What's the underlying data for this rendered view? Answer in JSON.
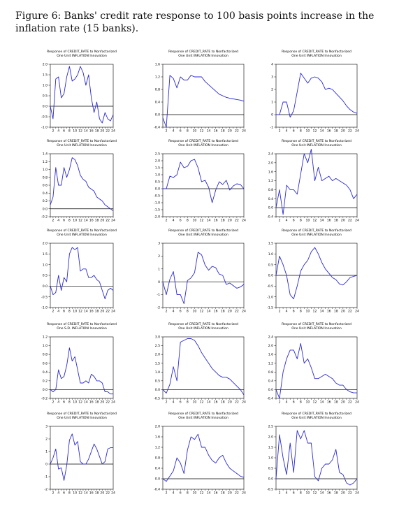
{
  "caption": "Figure 6: Banks' credit rate response to 100 basis points increase in the inflation rate (15 banks).",
  "colors": {
    "line": "#2a2ad0",
    "axis": "#000000",
    "zero_line": "#000000"
  },
  "chart_data": [
    {
      "type": "line",
      "title": "Response of CREDIT_RATE to Nonfactorized\nOne Unit INFLATION Innovation",
      "x": [
        1,
        2,
        3,
        4,
        5,
        6,
        7,
        8,
        9,
        10,
        11,
        12,
        13,
        14,
        15,
        16,
        17,
        18,
        19,
        20,
        21,
        22,
        23,
        24
      ],
      "y": [
        0.0,
        -0.6,
        1.3,
        1.4,
        0.4,
        0.6,
        1.4,
        1.9,
        1.2,
        1.3,
        1.5,
        1.9,
        1.6,
        1.0,
        1.5,
        0.4,
        -0.3,
        0.2,
        -0.6,
        -0.8,
        -0.3,
        -0.6,
        -0.7,
        -0.4
      ],
      "ylim": [
        -1.0,
        2.0
      ],
      "yticks": [
        "-1.0",
        "-0.5",
        "0.0",
        "0.5",
        "1.0",
        "1.5",
        "2.0"
      ],
      "xticks": [
        "2",
        "4",
        "6",
        "8",
        "10",
        "12",
        "14",
        "16",
        "18",
        "20",
        "22",
        "24"
      ]
    },
    {
      "type": "line",
      "title": "Response of CREDIT_RATE to Nonfactorized\nOne Unit INFLATION Innovation",
      "x": [
        1,
        2,
        3,
        4,
        5,
        6,
        7,
        8,
        9,
        10,
        11,
        12,
        13,
        14,
        15,
        16,
        17,
        18,
        19,
        20,
        21,
        22,
        23,
        24
      ],
      "y": [
        -0.1,
        -0.4,
        1.25,
        1.15,
        0.85,
        1.2,
        1.1,
        1.1,
        1.25,
        1.2,
        1.2,
        1.2,
        1.05,
        0.95,
        0.85,
        0.75,
        0.65,
        0.6,
        0.55,
        0.52,
        0.5,
        0.48,
        0.46,
        0.43
      ],
      "ylim": [
        -0.4,
        1.6
      ],
      "yticks": [
        "-0.4",
        "0.0",
        "0.4",
        "0.8",
        "1.2",
        "1.6"
      ],
      "xticks": [
        "2",
        "4",
        "6",
        "8",
        "10",
        "12",
        "14",
        "16",
        "18",
        "20",
        "22",
        "24"
      ]
    },
    {
      "type": "line",
      "title": "Response of CREDIT_RATE to Nonfactorized\nOne Unit INFLATION Innovation",
      "x": [
        1,
        2,
        3,
        4,
        5,
        6,
        7,
        8,
        9,
        10,
        11,
        12,
        13,
        14,
        15,
        16,
        17,
        18,
        19,
        20,
        21,
        22,
        23,
        24
      ],
      "y": [
        0.0,
        0.0,
        1.0,
        1.0,
        -0.2,
        0.3,
        1.8,
        3.3,
        2.9,
        2.5,
        2.9,
        3.0,
        2.9,
        2.6,
        2.0,
        2.1,
        2.0,
        1.7,
        1.4,
        1.1,
        0.7,
        0.4,
        0.2,
        0.1
      ],
      "ylim": [
        -1,
        4
      ],
      "yticks": [
        "-1",
        "0",
        "1",
        "2",
        "3",
        "4"
      ],
      "xticks": [
        "2",
        "4",
        "6",
        "8",
        "10",
        "12",
        "14",
        "16",
        "18",
        "20",
        "22",
        "24"
      ]
    },
    {
      "type": "line",
      "title": "Response of CREDIT_RATE to Nonfactorized\nOne Unit INFLATION Innovation",
      "x": [
        1,
        2,
        3,
        4,
        5,
        6,
        7,
        8,
        9,
        10,
        11,
        12,
        13,
        14,
        15,
        16,
        17,
        18,
        19,
        20,
        21,
        22,
        23,
        24
      ],
      "y": [
        0.1,
        0.3,
        1.05,
        0.6,
        0.6,
        1.05,
        0.8,
        1.0,
        1.3,
        1.25,
        1.1,
        0.85,
        0.75,
        0.7,
        0.55,
        0.5,
        0.45,
        0.3,
        0.25,
        0.2,
        0.1,
        0.05,
        0.0,
        -0.05
      ],
      "ylim": [
        -0.2,
        1.4
      ],
      "yticks": [
        "-0.2",
        "0.0",
        "0.2",
        "0.4",
        "0.6",
        "0.8",
        "1.0",
        "1.2",
        "1.4"
      ],
      "xticks": [
        "2",
        "4",
        "6",
        "8",
        "10",
        "12",
        "14",
        "16",
        "18",
        "20",
        "22",
        "24"
      ]
    },
    {
      "type": "line",
      "title": "Response of CREDIT_RATE to Nonfactorized\nOne Unit INFLATION Innovation",
      "x": [
        1,
        2,
        3,
        4,
        5,
        6,
        7,
        8,
        9,
        10,
        11,
        12,
        13,
        14,
        15,
        16,
        17,
        18,
        19,
        20,
        21,
        22,
        23,
        24
      ],
      "y": [
        0.0,
        0.0,
        0.9,
        0.8,
        1.0,
        1.9,
        1.5,
        1.6,
        2.0,
        2.1,
        1.5,
        0.5,
        0.6,
        0.1,
        -1.0,
        -0.1,
        0.5,
        0.3,
        0.6,
        -0.1,
        0.2,
        0.35,
        0.3,
        0.0
      ],
      "ylim": [
        -2.0,
        2.5
      ],
      "yticks": [
        "-2.0",
        "-1.5",
        "-1.0",
        "-0.5",
        "0.0",
        "0.5",
        "1.0",
        "1.5",
        "2.0",
        "2.5"
      ],
      "xticks": [
        "2",
        "4",
        "6",
        "8",
        "10",
        "12",
        "14",
        "16",
        "18",
        "20",
        "22",
        "24"
      ]
    },
    {
      "type": "line",
      "title": "Response of CREDIT_RATE to Nonfactorized\nOne Unit INFLATION Innovation",
      "x": [
        1,
        2,
        3,
        4,
        5,
        6,
        7,
        8,
        9,
        10,
        11,
        12,
        13,
        14,
        15,
        16,
        17,
        18,
        19,
        20,
        21,
        22,
        23,
        24
      ],
      "y": [
        0.0,
        0.8,
        -0.3,
        1.0,
        0.8,
        0.8,
        0.6,
        1.5,
        2.4,
        2.0,
        2.6,
        1.2,
        1.8,
        1.2,
        1.3,
        1.4,
        1.2,
        1.3,
        1.2,
        1.1,
        1.0,
        0.8,
        0.4,
        0.6
      ],
      "ylim": [
        -0.4,
        2.4
      ],
      "yticks": [
        "-0.4",
        "0.0",
        "0.4",
        "0.8",
        "1.2",
        "1.6",
        "2.0",
        "2.4"
      ],
      "xticks": [
        "2",
        "4",
        "6",
        "8",
        "10",
        "12",
        "14",
        "16",
        "18",
        "20",
        "22",
        "24"
      ]
    },
    {
      "type": "line",
      "title": "Response of CREDIT_RATE to Nonfactorized\nOne Unit INFLATION Innovation",
      "x": [
        1,
        2,
        3,
        4,
        5,
        6,
        7,
        8,
        9,
        10,
        11,
        12,
        13,
        14,
        15,
        16,
        17,
        18,
        19,
        20,
        21,
        22,
        23,
        24
      ],
      "y": [
        0.0,
        -0.4,
        -0.3,
        0.5,
        -0.2,
        0.4,
        0.2,
        1.5,
        1.8,
        1.7,
        1.8,
        0.7,
        0.8,
        0.8,
        0.4,
        0.4,
        0.5,
        0.3,
        0.2,
        -0.2,
        -0.6,
        -0.2,
        -0.1,
        -0.2
      ],
      "ylim": [
        -1.0,
        2.0
      ],
      "yticks": [
        "-1.0",
        "-0.5",
        "0.0",
        "0.5",
        "1.0",
        "1.5",
        "2.0"
      ],
      "xticks": [
        "2",
        "4",
        "6",
        "8",
        "10",
        "12",
        "14",
        "16",
        "18",
        "20",
        "22",
        "24"
      ]
    },
    {
      "type": "line",
      "title": "Response of CREDIT_RATE to Nonfactorized\nOne Unit INFLATION Innovation",
      "x": [
        1,
        2,
        3,
        4,
        5,
        6,
        7,
        8,
        9,
        10,
        11,
        12,
        13,
        14,
        15,
        16,
        17,
        18,
        19,
        20,
        21,
        22,
        23,
        24
      ],
      "y": [
        0.0,
        -1.0,
        0.2,
        0.8,
        -1.0,
        -1.0,
        -1.7,
        0.1,
        0.3,
        0.7,
        2.3,
        2.1,
        1.3,
        0.9,
        1.2,
        1.1,
        0.6,
        0.5,
        -0.2,
        -0.1,
        -0.3,
        -0.5,
        -0.4,
        -0.2
      ],
      "ylim": [
        -2,
        3
      ],
      "yticks": [
        "-2",
        "-1",
        "0",
        "1",
        "2",
        "3"
      ],
      "xticks": [
        "2",
        "4",
        "6",
        "8",
        "10",
        "12",
        "14",
        "16",
        "18",
        "20",
        "22",
        "24"
      ]
    },
    {
      "type": "line",
      "title": "Response of CREDIT_RATE to Nonfactorized\nOne Unit INFLATION Innovation",
      "x": [
        1,
        2,
        3,
        4,
        5,
        6,
        7,
        8,
        9,
        10,
        11,
        12,
        13,
        14,
        15,
        16,
        17,
        18,
        19,
        20,
        21,
        22,
        23,
        24
      ],
      "y": [
        0.0,
        0.9,
        0.5,
        0.0,
        -0.9,
        -1.1,
        -0.5,
        0.2,
        0.5,
        0.7,
        1.1,
        1.3,
        1.0,
        0.6,
        0.3,
        0.1,
        -0.1,
        -0.2,
        -0.4,
        -0.45,
        -0.3,
        -0.1,
        -0.05,
        0.0
      ],
      "ylim": [
        -1.5,
        1.5
      ],
      "yticks": [
        "-1.5",
        "-1.0",
        "-0.5",
        "0.0",
        "0.5",
        "1.0",
        "1.5"
      ],
      "xticks": [
        "2",
        "4",
        "6",
        "8",
        "10",
        "12",
        "14",
        "16",
        "18",
        "20",
        "22",
        "24"
      ]
    },
    {
      "type": "line",
      "title": "Response of CREDIT_RATE to Nonfactorized\nOne S.D. INFLATION Innovation",
      "x": [
        1,
        2,
        3,
        4,
        5,
        6,
        7,
        8,
        9,
        10,
        11,
        12,
        13,
        14,
        15,
        16,
        17,
        18,
        19,
        20,
        21,
        22,
        23,
        24
      ],
      "y": [
        0.0,
        -0.05,
        0.0,
        0.45,
        0.25,
        0.3,
        0.55,
        0.95,
        0.65,
        0.75,
        0.45,
        0.15,
        0.15,
        0.2,
        0.15,
        0.35,
        0.3,
        0.2,
        0.2,
        0.15,
        -0.05,
        -0.05,
        -0.1,
        -0.1
      ],
      "ylim": [
        -0.2,
        1.2
      ],
      "yticks": [
        "-0.2",
        "0.0",
        "0.2",
        "0.4",
        "0.6",
        "0.8",
        "1.0",
        "1.2"
      ],
      "xticks": [
        "2",
        "4",
        "6",
        "8",
        "10",
        "12",
        "14",
        "16",
        "18",
        "20",
        "22",
        "24"
      ]
    },
    {
      "type": "line",
      "title": "Response of CREDIT_RATE to Nonfactorized\nOne Unit INFLATION Innovation",
      "x": [
        1,
        2,
        3,
        4,
        5,
        6,
        7,
        8,
        9,
        10,
        11,
        12,
        13,
        14,
        15,
        16,
        17,
        18,
        19,
        20,
        21,
        22,
        23,
        24
      ],
      "y": [
        0.0,
        -0.2,
        0.3,
        1.3,
        0.5,
        2.7,
        2.8,
        2.9,
        2.9,
        2.8,
        2.5,
        2.1,
        1.8,
        1.5,
        1.2,
        1.0,
        0.8,
        0.7,
        0.7,
        0.6,
        0.4,
        0.2,
        0.0,
        -0.3
      ],
      "ylim": [
        -0.5,
        3.0
      ],
      "yticks": [
        "-0.5",
        "0.0",
        "0.5",
        "1.0",
        "1.5",
        "2.0",
        "2.5",
        "3.0"
      ],
      "xticks": [
        "2",
        "4",
        "6",
        "8",
        "10",
        "12",
        "14",
        "16",
        "18",
        "20",
        "22",
        "24"
      ]
    },
    {
      "type": "line",
      "title": "Response of CREDIT_RATE to Nonfactorized\nOne Unit INFLATION Innovation",
      "x": [
        1,
        2,
        3,
        4,
        5,
        6,
        7,
        8,
        9,
        10,
        11,
        12,
        13,
        14,
        15,
        16,
        17,
        18,
        19,
        20,
        21,
        22,
        23,
        24
      ],
      "y": [
        0.0,
        -0.4,
        0.8,
        1.4,
        1.8,
        1.8,
        1.4,
        2.1,
        1.2,
        1.4,
        1.0,
        0.5,
        0.5,
        0.6,
        0.7,
        0.6,
        0.5,
        0.3,
        0.2,
        0.2,
        0.0,
        -0.1,
        -0.15,
        -0.15
      ],
      "ylim": [
        -0.4,
        2.4
      ],
      "yticks": [
        "-0.4",
        "0.0",
        "0.4",
        "0.8",
        "1.2",
        "1.6",
        "2.0",
        "2.4"
      ],
      "xticks": [
        "2",
        "4",
        "6",
        "8",
        "10",
        "12",
        "14",
        "16",
        "18",
        "20",
        "22",
        "24"
      ]
    },
    {
      "type": "line",
      "title": "Response of CREDIT_RATE to Nonfactorized\nOne Unit INFLATION Innovation",
      "x": [
        1,
        2,
        3,
        4,
        5,
        6,
        7,
        8,
        9,
        10,
        11,
        12,
        13,
        14,
        15,
        16,
        17,
        18,
        19,
        20,
        21,
        22,
        23,
        24
      ],
      "y": [
        0.0,
        0.5,
        1.2,
        -0.4,
        -0.3,
        -1.3,
        -0.1,
        1.9,
        2.4,
        1.5,
        1.8,
        0.2,
        0.0,
        0.0,
        0.4,
        1.0,
        1.6,
        1.2,
        0.6,
        0.0,
        0.2,
        1.2,
        1.3,
        1.3
      ],
      "ylim": [
        -2,
        3
      ],
      "yticks": [
        "-2",
        "-1",
        "0",
        "1",
        "2",
        "3"
      ],
      "xticks": [
        "2",
        "4",
        "6",
        "8",
        "10",
        "12",
        "14",
        "16",
        "18",
        "20",
        "22",
        "24"
      ]
    },
    {
      "type": "line",
      "title": "Response of CREDIT_RATE to Nonfactorized\nOne Unit INFLATION Innovation",
      "x": [
        1,
        2,
        3,
        4,
        5,
        6,
        7,
        8,
        9,
        10,
        11,
        12,
        13,
        14,
        15,
        16,
        17,
        18,
        19,
        20,
        21,
        22,
        23,
        24
      ],
      "y": [
        0.0,
        -0.1,
        0.1,
        0.3,
        0.8,
        0.6,
        0.2,
        1.1,
        1.6,
        1.5,
        1.7,
        1.2,
        1.2,
        0.9,
        0.7,
        0.6,
        0.8,
        0.9,
        0.6,
        0.4,
        0.3,
        0.2,
        0.1,
        0.05
      ],
      "ylim": [
        -0.4,
        2.0
      ],
      "yticks": [
        "-0.4",
        "0.0",
        "0.4",
        "0.8",
        "1.2",
        "1.6",
        "2.0"
      ],
      "xticks": [
        "2",
        "4",
        "6",
        "8",
        "10",
        "12",
        "14",
        "16",
        "18",
        "20",
        "22",
        "24"
      ]
    },
    {
      "type": "line",
      "title": "Response of CREDIT_RATE to Nonfactorized\nOne Unit INFLATION Innovation",
      "x": [
        1,
        2,
        3,
        4,
        5,
        6,
        7,
        8,
        9,
        10,
        11,
        12,
        13,
        14,
        15,
        16,
        17,
        18,
        19,
        20,
        21,
        22,
        23,
        24
      ],
      "y": [
        0.0,
        2.1,
        1.0,
        0.2,
        1.7,
        0.3,
        2.3,
        1.9,
        2.3,
        1.7,
        1.7,
        0.1,
        -0.1,
        0.5,
        0.7,
        0.7,
        0.9,
        1.4,
        0.3,
        0.2,
        -0.2,
        -0.3,
        -0.2,
        0.0
      ],
      "ylim": [
        -0.5,
        2.5
      ],
      "yticks": [
        "-0.5",
        "0.0",
        "0.5",
        "1.0",
        "1.5",
        "2.0",
        "2.5"
      ],
      "xticks": [
        "2",
        "4",
        "6",
        "8",
        "10",
        "12",
        "14",
        "16",
        "18",
        "20",
        "22",
        "24"
      ]
    }
  ]
}
